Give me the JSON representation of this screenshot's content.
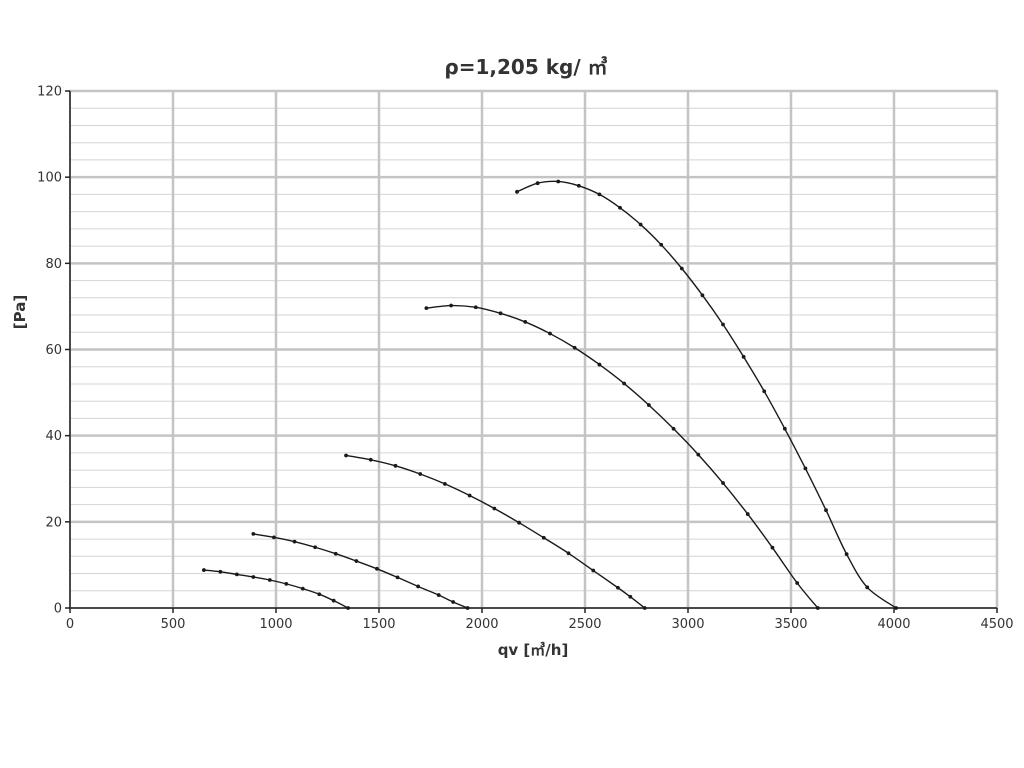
{
  "chart_data": {
    "type": "line",
    "title": "ρ=1,205 kg/ ㎥",
    "xlabel": "qv [㎥/h]",
    "ylabel": "[Pa]",
    "xlim": [
      0,
      4500
    ],
    "ylim": [
      0,
      120
    ],
    "x_ticks": [
      "0",
      "500",
      "1000",
      "1500",
      "2000",
      "2500",
      "3000",
      "3500",
      "4000",
      "4500"
    ],
    "y_ticks": [
      "0",
      "20",
      "40",
      "60",
      "80",
      "100",
      "120"
    ],
    "x_tick_values": [
      0,
      500,
      1000,
      1500,
      2000,
      2500,
      3000,
      3500,
      4000,
      4500
    ],
    "y_tick_values": [
      0,
      20,
      40,
      60,
      80,
      100,
      120
    ],
    "x_minor_step": 500,
    "y_minor_step": 4,
    "grid": true,
    "legend": "none",
    "series": [
      {
        "points": [
          [
            650,
            8.8
          ],
          [
            730,
            8.4
          ],
          [
            810,
            7.8
          ],
          [
            890,
            7.2
          ],
          [
            970,
            6.5
          ],
          [
            1050,
            5.6
          ],
          [
            1130,
            4.5
          ],
          [
            1210,
            3.2
          ],
          [
            1280,
            1.7
          ],
          [
            1350,
            0
          ]
        ]
      },
      {
        "points": [
          [
            890,
            17.2
          ],
          [
            990,
            16.4
          ],
          [
            1090,
            15.4
          ],
          [
            1190,
            14.1
          ],
          [
            1290,
            12.6
          ],
          [
            1390,
            10.9
          ],
          [
            1490,
            9.1
          ],
          [
            1590,
            7.1
          ],
          [
            1690,
            5.0
          ],
          [
            1790,
            3.0
          ],
          [
            1860,
            1.4
          ],
          [
            1930,
            0
          ]
        ]
      },
      {
        "points": [
          [
            1340,
            35.4
          ],
          [
            1460,
            34.4
          ],
          [
            1580,
            33.0
          ],
          [
            1700,
            31.1
          ],
          [
            1820,
            28.8
          ],
          [
            1940,
            26.1
          ],
          [
            2060,
            23.1
          ],
          [
            2180,
            19.8
          ],
          [
            2300,
            16.3
          ],
          [
            2420,
            12.7
          ],
          [
            2540,
            8.7
          ],
          [
            2660,
            4.7
          ],
          [
            2720,
            2.6
          ],
          [
            2790,
            0
          ]
        ]
      },
      {
        "points": [
          [
            1730,
            69.6
          ],
          [
            1850,
            70.2
          ],
          [
            1970,
            69.8
          ],
          [
            2090,
            68.4
          ],
          [
            2210,
            66.4
          ],
          [
            2330,
            63.7
          ],
          [
            2450,
            60.4
          ],
          [
            2570,
            56.5
          ],
          [
            2690,
            52.1
          ],
          [
            2810,
            47.1
          ],
          [
            2930,
            41.6
          ],
          [
            3050,
            35.6
          ],
          [
            3170,
            29.0
          ],
          [
            3290,
            21.8
          ],
          [
            3410,
            14.0
          ],
          [
            3530,
            5.8
          ],
          [
            3630,
            0
          ]
        ]
      },
      {
        "points": [
          [
            2170,
            96.6
          ],
          [
            2270,
            98.6
          ],
          [
            2370,
            99.0
          ],
          [
            2470,
            98.0
          ],
          [
            2570,
            96.0
          ],
          [
            2670,
            92.9
          ],
          [
            2770,
            89.0
          ],
          [
            2870,
            84.3
          ],
          [
            2970,
            78.8
          ],
          [
            3070,
            72.6
          ],
          [
            3170,
            65.8
          ],
          [
            3270,
            58.3
          ],
          [
            3370,
            50.3
          ],
          [
            3470,
            41.6
          ],
          [
            3570,
            32.4
          ],
          [
            3670,
            22.7
          ],
          [
            3770,
            12.5
          ],
          [
            3870,
            4.8
          ],
          [
            4010,
            0
          ]
        ]
      }
    ]
  }
}
